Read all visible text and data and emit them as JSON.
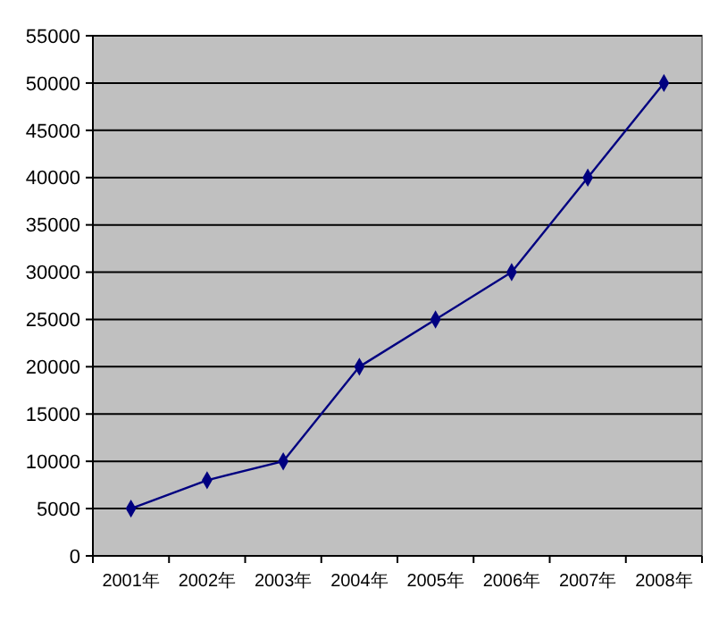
{
  "chart_data": {
    "type": "line",
    "categories": [
      "2001年",
      "2002年",
      "2003年",
      "2004年",
      "2005年",
      "2006年",
      "2007年",
      "2008年"
    ],
    "series": [
      {
        "color": "#000080",
        "values": [
          5000,
          8000,
          10000,
          20000,
          25000,
          30000,
          40000,
          50000
        ]
      }
    ],
    "ylim": [
      0,
      55000
    ],
    "yticks": [
      0,
      5000,
      10000,
      15000,
      20000,
      25000,
      30000,
      35000,
      40000,
      45000,
      50000,
      55000
    ],
    "grid": "y",
    "marker": "diamond"
  }
}
